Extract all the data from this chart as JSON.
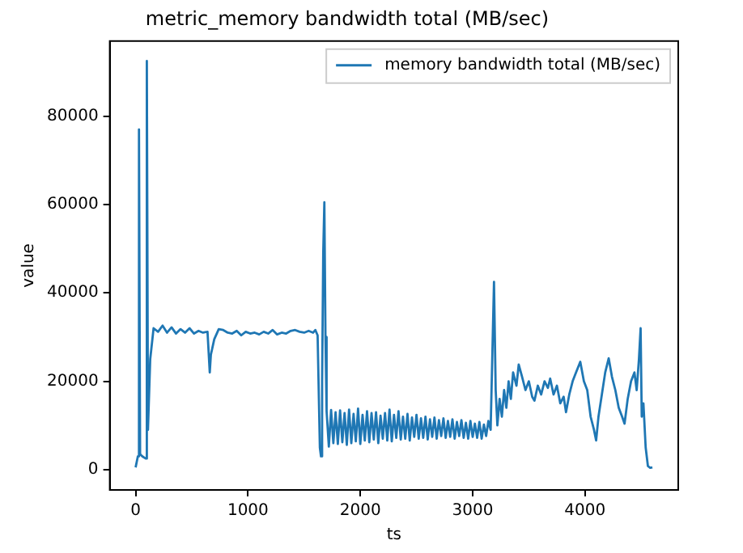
{
  "chart_data": {
    "type": "line",
    "title": "metric_memory bandwidth total (MB/sec)",
    "xlabel": "ts",
    "ylabel": "value",
    "legend": "top right",
    "marker": "none",
    "line_style": "solid",
    "grid": false,
    "xlim": [
      -230,
      4830
    ],
    "ylim": [
      -4600,
      97000
    ],
    "xticks": [
      0,
      1000,
      2000,
      3000,
      4000
    ],
    "yticks": [
      0,
      20000,
      40000,
      60000,
      80000
    ],
    "series": [
      {
        "name": "memory bandwidth total (MB/sec)",
        "color": "#1f77b4",
        "x": [
          0,
          20,
          30,
          40,
          60,
          90,
          100,
          110,
          130,
          160,
          200,
          240,
          280,
          320,
          360,
          400,
          440,
          480,
          520,
          560,
          600,
          640,
          660,
          670,
          700,
          740,
          780,
          820,
          860,
          900,
          940,
          980,
          1020,
          1060,
          1100,
          1140,
          1180,
          1220,
          1260,
          1300,
          1340,
          1380,
          1420,
          1460,
          1500,
          1540,
          1580,
          1600,
          1620,
          1640,
          1650,
          1660,
          1670,
          1680,
          1690,
          1700,
          1720,
          1740,
          1760,
          1780,
          1800,
          1820,
          1840,
          1860,
          1880,
          1900,
          1920,
          1940,
          1960,
          1980,
          2000,
          2020,
          2040,
          2060,
          2080,
          2100,
          2120,
          2140,
          2160,
          2180,
          2200,
          2220,
          2240,
          2260,
          2280,
          2300,
          2320,
          2340,
          2360,
          2380,
          2400,
          2420,
          2440,
          2460,
          2480,
          2500,
          2520,
          2540,
          2560,
          2580,
          2600,
          2620,
          2640,
          2660,
          2680,
          2700,
          2720,
          2740,
          2760,
          2780,
          2800,
          2820,
          2840,
          2860,
          2880,
          2900,
          2920,
          2940,
          2960,
          2980,
          3000,
          3020,
          3040,
          3060,
          3080,
          3100,
          3120,
          3140,
          3160,
          3190,
          3205,
          3220,
          3240,
          3260,
          3280,
          3300,
          3320,
          3340,
          3360,
          3390,
          3410,
          3440,
          3470,
          3500,
          3530,
          3550,
          3580,
          3610,
          3640,
          3670,
          3690,
          3720,
          3750,
          3780,
          3810,
          3831,
          3860,
          3890,
          3920,
          3958,
          3990,
          4020,
          4050,
          4080,
          4099,
          4120,
          4150,
          4180,
          4211,
          4240,
          4270,
          4300,
          4330,
          4352,
          4380,
          4410,
          4440,
          4460,
          4480,
          4495,
          4505,
          4520,
          4540,
          4560,
          4580,
          4600
        ],
        "values": [
          500,
          3000,
          77000,
          3500,
          3000,
          2500,
          92500,
          9000,
          25000,
          32000,
          31200,
          32600,
          31000,
          32200,
          30800,
          31800,
          31000,
          32000,
          30800,
          31400,
          31000,
          31200,
          22000,
          26000,
          29500,
          31800,
          31600,
          31000,
          30800,
          31400,
          30400,
          31200,
          30800,
          31000,
          30600,
          31200,
          30800,
          31600,
          30600,
          31000,
          30800,
          31400,
          31600,
          31200,
          31000,
          31400,
          31000,
          31600,
          30400,
          5000,
          3000,
          20000,
          49000,
          60500,
          30000,
          13200,
          5200,
          13500,
          6000,
          13000,
          5800,
          13400,
          6200,
          12800,
          5600,
          13600,
          6000,
          12600,
          6400,
          13800,
          5800,
          12400,
          6600,
          13200,
          6200,
          12800,
          6800,
          13000,
          6000,
          12200,
          7000,
          12800,
          6600,
          13600,
          6400,
          12400,
          7200,
          13200,
          6800,
          12000,
          7000,
          12600,
          6600,
          11800,
          7400,
          12400,
          7000,
          11600,
          7200,
          12000,
          6800,
          11400,
          7400,
          11800,
          7000,
          11200,
          7600,
          11600,
          7200,
          11000,
          7400,
          11400,
          7000,
          10800,
          7600,
          11200,
          7200,
          10600,
          7000,
          11000,
          7400,
          10400,
          7200,
          10800,
          7000,
          10200,
          7600,
          11000,
          9000,
          42500,
          18000,
          10000,
          16000,
          12000,
          18000,
          14000,
          20000,
          16000,
          22000,
          19000,
          23800,
          21000,
          18000,
          20000,
          16500,
          15600,
          19000,
          17000,
          20000,
          18500,
          20600,
          17000,
          19000,
          15000,
          16500,
          13000,
          17000,
          20000,
          22000,
          24400,
          20000,
          18000,
          12000,
          9000,
          6600,
          12000,
          17000,
          22000,
          25200,
          21000,
          18000,
          14000,
          12000,
          10400,
          16000,
          20000,
          22000,
          18000,
          25000,
          32000,
          12000,
          15000,
          5000,
          800,
          400,
          500
        ]
      }
    ]
  }
}
